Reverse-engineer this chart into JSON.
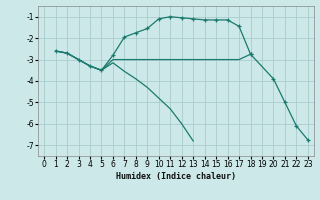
{
  "xlabel": "Humidex (Indice chaleur)",
  "bg_color": "#cce8e8",
  "line_color": "#1a7a6e",
  "grid_color": "#aacccc",
  "xlim": [
    -0.5,
    23.5
  ],
  "ylim": [
    -7.5,
    -0.5
  ],
  "yticks": [
    -1,
    -2,
    -3,
    -4,
    -5,
    -6,
    -7
  ],
  "xticks": [
    0,
    1,
    2,
    3,
    4,
    5,
    6,
    7,
    8,
    9,
    10,
    11,
    12,
    13,
    14,
    15,
    16,
    17,
    18,
    19,
    20,
    21,
    22,
    23
  ],
  "curve1_x": [
    1,
    2,
    3,
    4,
    5,
    6,
    7,
    8,
    9,
    10,
    11,
    12,
    13,
    14,
    15,
    16,
    17,
    18
  ],
  "curve1_y": [
    -2.6,
    -2.7,
    -3.0,
    -3.3,
    -3.5,
    -2.8,
    -1.95,
    -1.75,
    -1.55,
    -1.1,
    -1.0,
    -1.05,
    -1.1,
    -1.15,
    -1.15,
    -1.15,
    -1.45,
    -2.75
  ],
  "curve2_x": [
    1,
    2,
    3,
    4,
    5,
    6,
    7,
    8,
    9,
    10,
    11,
    12,
    13,
    14,
    15,
    16,
    17,
    18
  ],
  "curve2_y": [
    -2.6,
    -2.7,
    -3.0,
    -3.3,
    -3.5,
    -3.0,
    -3.0,
    -3.0,
    -3.0,
    -3.0,
    -3.0,
    -3.0,
    -3.0,
    -3.0,
    -3.0,
    -3.0,
    -3.0,
    -2.75
  ],
  "curve3_x": [
    1,
    2,
    3,
    4,
    5,
    6,
    7,
    8,
    9,
    10,
    11,
    12,
    13
  ],
  "curve3_y": [
    -2.6,
    -2.7,
    -3.0,
    -3.3,
    -3.5,
    -3.15,
    -3.55,
    -3.9,
    -4.3,
    -4.8,
    -5.3,
    -6.0,
    -6.8
  ],
  "curve4_x": [
    18,
    20,
    21,
    22,
    23
  ],
  "curve4_y": [
    -2.75,
    -3.9,
    -5.0,
    -6.1,
    -6.75
  ]
}
